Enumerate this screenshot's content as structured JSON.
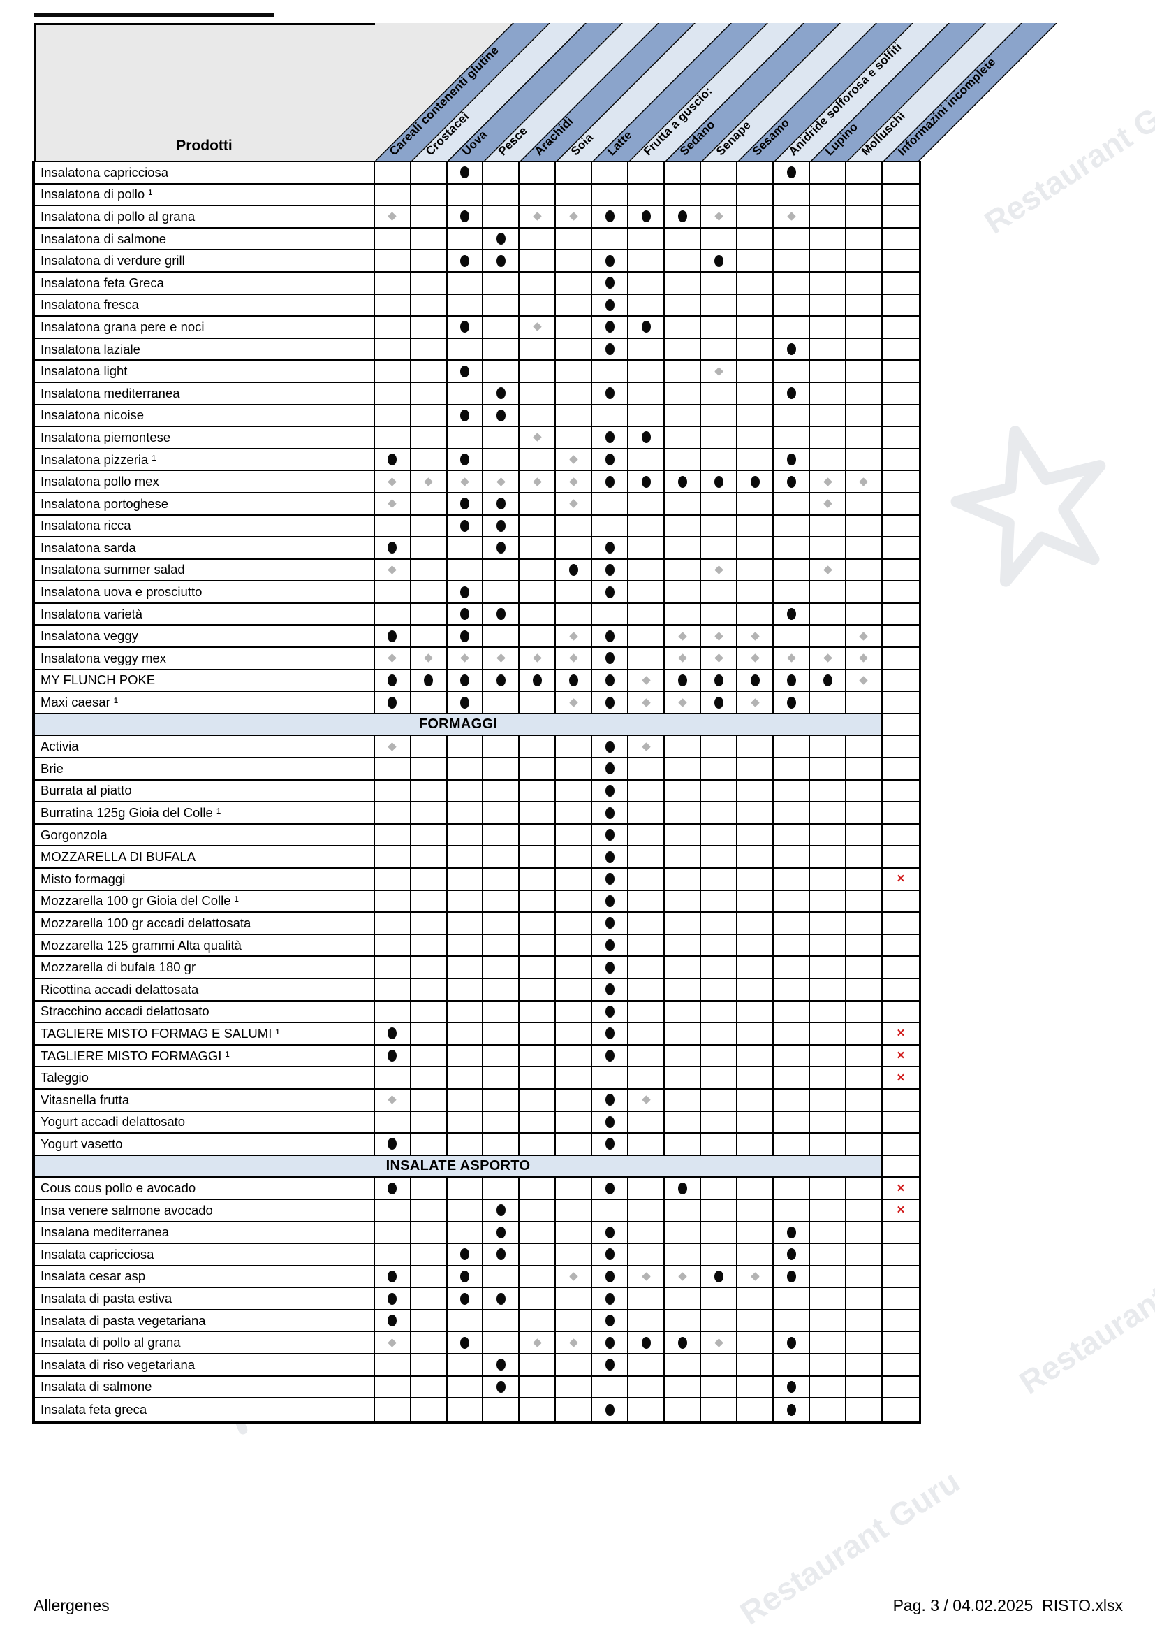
{
  "page": {
    "footer_left": "Allergenes",
    "footer_right": "Pag. 3 / 04.02.2025  RISTO.xlsx"
  },
  "watermark": {
    "text": "Restaurant Guru"
  },
  "colors": {
    "stripe_dark": "#8ba4cb",
    "stripe_light": "#dde6f1",
    "section_band": "#dbe5f1",
    "header_gray": "#e9e9e9",
    "mark_red": "#d01818"
  },
  "marks_legend": {
    "d": "allergen-present-dot",
    "f": "allergen-trace-diamond",
    "x": "information-incomplete-x"
  },
  "x_glyph": "×",
  "table": {
    "product_header": "Prodotti",
    "columns": [
      {
        "label": "Careali contenenti glutine",
        "shade": "dark"
      },
      {
        "label": "Crostacei",
        "shade": "light"
      },
      {
        "label": "Uova",
        "shade": "dark"
      },
      {
        "label": "Pesce",
        "shade": "light"
      },
      {
        "label": "Arachidi",
        "shade": "dark"
      },
      {
        "label": "Soia",
        "shade": "light"
      },
      {
        "label": "Latte",
        "shade": "dark"
      },
      {
        "label": "Frutta a guscio:",
        "shade": "light"
      },
      {
        "label": "Sedano",
        "shade": "dark"
      },
      {
        "label": "Senape",
        "shade": "light"
      },
      {
        "label": "Sesamo",
        "shade": "dark"
      },
      {
        "label": "Anidride solforosa e solfiti",
        "shade": "light"
      },
      {
        "label": "Lupino",
        "shade": "dark"
      },
      {
        "label": "Molluschi",
        "shade": "light"
      },
      {
        "label": "Informazini incomplete",
        "shade": "dark"
      }
    ],
    "sections": [
      {
        "header": null,
        "rows": [
          {
            "name": "Insalatona capricciosa",
            "marks": {
              "3": "d",
              "12": "d"
            }
          },
          {
            "name": "Insalatona di pollo ¹",
            "marks": {}
          },
          {
            "name": "Insalatona di pollo al grana",
            "marks": {
              "1": "f",
              "3": "d",
              "5": "f",
              "6": "f",
              "7": "d",
              "8": "d",
              "9": "d",
              "10": "f",
              "12": "f"
            }
          },
          {
            "name": "Insalatona di salmone",
            "marks": {
              "4": "d"
            }
          },
          {
            "name": "Insalatona di verdure grill",
            "marks": {
              "3": "d",
              "4": "d",
              "7": "d",
              "10": "d"
            }
          },
          {
            "name": "Insalatona feta Greca",
            "marks": {
              "7": "d"
            }
          },
          {
            "name": "Insalatona fresca",
            "marks": {
              "7": "d"
            }
          },
          {
            "name": "Insalatona grana pere e noci",
            "marks": {
              "3": "d",
              "5": "f",
              "7": "d",
              "8": "d"
            }
          },
          {
            "name": "Insalatona laziale",
            "marks": {
              "7": "d",
              "12": "d"
            }
          },
          {
            "name": "Insalatona light",
            "marks": {
              "3": "d",
              "10": "f"
            }
          },
          {
            "name": "Insalatona mediterranea",
            "marks": {
              "4": "d",
              "7": "d",
              "12": "d"
            }
          },
          {
            "name": "Insalatona nicoise",
            "marks": {
              "3": "d",
              "4": "d"
            }
          },
          {
            "name": "Insalatona piemontese",
            "marks": {
              "5": "f",
              "7": "d",
              "8": "d"
            }
          },
          {
            "name": "Insalatona pizzeria ¹",
            "marks": {
              "1": "d",
              "3": "d",
              "6": "f",
              "7": "d",
              "12": "d"
            }
          },
          {
            "name": "Insalatona pollo mex",
            "marks": {
              "1": "f",
              "2": "f",
              "3": "f",
              "4": "f",
              "5": "f",
              "6": "f",
              "7": "d",
              "8": "d",
              "9": "d",
              "10": "d",
              "11": "d",
              "12": "d",
              "13": "f",
              "14": "f"
            }
          },
          {
            "name": "Insalatona portoghese",
            "marks": {
              "1": "f",
              "3": "d",
              "4": "d",
              "6": "f",
              "13": "f"
            }
          },
          {
            "name": "Insalatona ricca",
            "marks": {
              "3": "d",
              "4": "d"
            }
          },
          {
            "name": "Insalatona sarda",
            "marks": {
              "1": "d",
              "4": "d",
              "7": "d"
            }
          },
          {
            "name": "Insalatona summer salad",
            "marks": {
              "1": "f",
              "6": "d",
              "7": "d",
              "10": "f",
              "13": "f"
            }
          },
          {
            "name": "Insalatona uova e prosciutto",
            "marks": {
              "3": "d",
              "7": "d"
            }
          },
          {
            "name": "Insalatona varietà",
            "marks": {
              "3": "d",
              "4": "d",
              "12": "d"
            }
          },
          {
            "name": "Insalatona veggy",
            "marks": {
              "1": "d",
              "3": "d",
              "6": "f",
              "7": "d",
              "9": "f",
              "10": "f",
              "11": "f",
              "14": "f"
            }
          },
          {
            "name": "Insalatona veggy mex",
            "marks": {
              "1": "f",
              "2": "f",
              "3": "f",
              "4": "f",
              "5": "f",
              "6": "f",
              "7": "d",
              "9": "f",
              "10": "f",
              "11": "f",
              "12": "f",
              "13": "f",
              "14": "f"
            }
          },
          {
            "name": "MY FLUNCH POKE",
            "marks": {
              "1": "d",
              "2": "d",
              "3": "d",
              "4": "d",
              "5": "d",
              "6": "d",
              "7": "d",
              "8": "f",
              "9": "d",
              "10": "d",
              "11": "d",
              "12": "d",
              "13": "d",
              "14": "f"
            }
          },
          {
            "name": "Maxi caesar ¹",
            "marks": {
              "1": "d",
              "3": "d",
              "6": "f",
              "7": "d",
              "8": "f",
              "9": "f",
              "10": "d",
              "11": "f",
              "12": "d"
            }
          }
        ]
      },
      {
        "header": "FORMAGGI",
        "rows": [
          {
            "name": "Activia",
            "marks": {
              "1": "f",
              "7": "d",
              "8": "f"
            }
          },
          {
            "name": "Brie",
            "marks": {
              "7": "d"
            }
          },
          {
            "name": "Burrata al piatto",
            "marks": {
              "7": "d"
            }
          },
          {
            "name": "Burratina 125g Gioia del Colle ¹",
            "marks": {
              "7": "d"
            }
          },
          {
            "name": "Gorgonzola",
            "marks": {
              "7": "d"
            }
          },
          {
            "name": "MOZZARELLA DI BUFALA",
            "marks": {
              "7": "d"
            }
          },
          {
            "name": "Misto formaggi",
            "marks": {
              "7": "d",
              "15": "x"
            }
          },
          {
            "name": "Mozzarella 100 gr Gioia del Colle ¹",
            "marks": {
              "7": "d"
            }
          },
          {
            "name": "Mozzarella 100 gr accadi delattosata",
            "marks": {
              "7": "d"
            }
          },
          {
            "name": "Mozzarella 125 grammi Alta qualità",
            "marks": {
              "7": "d"
            }
          },
          {
            "name": "Mozzarella di bufala 180 gr",
            "marks": {
              "7": "d"
            }
          },
          {
            "name": "Ricottina accadi delattosata",
            "marks": {
              "7": "d"
            }
          },
          {
            "name": "Stracchino accadi delattosato",
            "marks": {
              "7": "d"
            }
          },
          {
            "name": "TAGLIERE MISTO FORMAG E SALUMI ¹",
            "marks": {
              "1": "d",
              "7": "d",
              "15": "x"
            }
          },
          {
            "name": "TAGLIERE MISTO FORMAGGI ¹",
            "marks": {
              "1": "d",
              "7": "d",
              "15": "x"
            }
          },
          {
            "name": "Taleggio",
            "marks": {
              "15": "x"
            }
          },
          {
            "name": "Vitasnella frutta",
            "marks": {
              "1": "f",
              "7": "d",
              "8": "f"
            }
          },
          {
            "name": "Yogurt accadi delattosato",
            "marks": {
              "7": "d"
            }
          },
          {
            "name": "Yogurt vasetto",
            "marks": {
              "1": "d",
              "7": "d"
            }
          }
        ]
      },
      {
        "header": "INSALATE ASPORTO",
        "rows": [
          {
            "name": "Cous cous pollo e avocado",
            "marks": {
              "1": "d",
              "7": "d",
              "9": "d",
              "15": "x"
            }
          },
          {
            "name": "Insa venere salmone avocado",
            "marks": {
              "4": "d",
              "15": "x"
            }
          },
          {
            "name": "Insalana mediterranea",
            "marks": {
              "4": "d",
              "7": "d",
              "12": "d"
            }
          },
          {
            "name": "Insalata capricciosa",
            "marks": {
              "3": "d",
              "4": "d",
              "7": "d",
              "12": "d"
            }
          },
          {
            "name": "Insalata cesar asp",
            "marks": {
              "1": "d",
              "3": "d",
              "6": "f",
              "7": "d",
              "8": "f",
              "9": "f",
              "10": "d",
              "11": "f",
              "12": "d"
            }
          },
          {
            "name": "Insalata di pasta estiva",
            "marks": {
              "1": "d",
              "3": "d",
              "4": "d",
              "7": "d"
            }
          },
          {
            "name": "Insalata di pasta vegetariana",
            "marks": {
              "1": "d",
              "7": "d"
            }
          },
          {
            "name": "Insalata di pollo al grana",
            "marks": {
              "1": "f",
              "3": "d",
              "5": "f",
              "6": "f",
              "7": "d",
              "8": "d",
              "9": "d",
              "10": "f",
              "12": "d"
            }
          },
          {
            "name": "Insalata di riso vegetariana",
            "marks": {
              "4": "d",
              "7": "d"
            }
          },
          {
            "name": "Insalata di salmone",
            "marks": {
              "4": "d",
              "12": "d"
            }
          },
          {
            "name": "Insalata feta greca",
            "marks": {
              "7": "d",
              "12": "d"
            }
          }
        ]
      }
    ]
  }
}
